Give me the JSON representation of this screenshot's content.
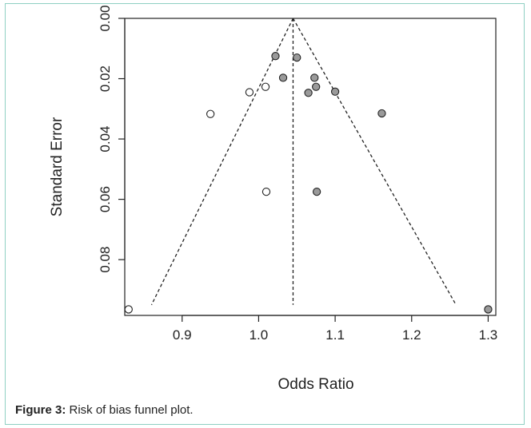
{
  "caption": {
    "label": "Figure 3:",
    "text": " Risk of bias funnel plot."
  },
  "chart_data": {
    "type": "scatter",
    "title": "",
    "xlabel": "Odds Ratio",
    "ylabel": "Standard Error",
    "xlim": [
      0.825,
      1.31
    ],
    "ylim": [
      0.0,
      0.0985
    ],
    "y_reversed": true,
    "x_ticks": [
      "0.9",
      "1.0",
      "1.1",
      "1.2",
      "1.3"
    ],
    "y_ticks": [
      "0.00",
      "0.02",
      "0.04",
      "0.06",
      "0.08"
    ],
    "pooled_estimate": 1.045,
    "funnel": {
      "apex": [
        1.045,
        0.0
      ],
      "left_end": [
        0.86,
        0.095
      ],
      "right_end": [
        1.258,
        0.095
      ]
    },
    "series": [
      {
        "marker": "filled",
        "color": "#9a9a9a",
        "points": [
          {
            "x": 1.022,
            "y": 0.0125
          },
          {
            "x": 1.05,
            "y": 0.013
          },
          {
            "x": 1.032,
            "y": 0.0197
          },
          {
            "x": 1.073,
            "y": 0.0197
          },
          {
            "x": 1.075,
            "y": 0.0227
          },
          {
            "x": 1.065,
            "y": 0.0247
          },
          {
            "x": 1.1,
            "y": 0.0243
          },
          {
            "x": 1.161,
            "y": 0.0315
          },
          {
            "x": 1.076,
            "y": 0.0575
          },
          {
            "x": 1.3,
            "y": 0.0965
          }
        ]
      },
      {
        "marker": "open",
        "color": "#ffffff",
        "points": [
          {
            "x": 1.009,
            "y": 0.0227
          },
          {
            "x": 0.988,
            "y": 0.0245
          },
          {
            "x": 0.937,
            "y": 0.0317
          },
          {
            "x": 1.01,
            "y": 0.0575
          },
          {
            "x": 0.83,
            "y": 0.0965
          }
        ]
      }
    ]
  }
}
